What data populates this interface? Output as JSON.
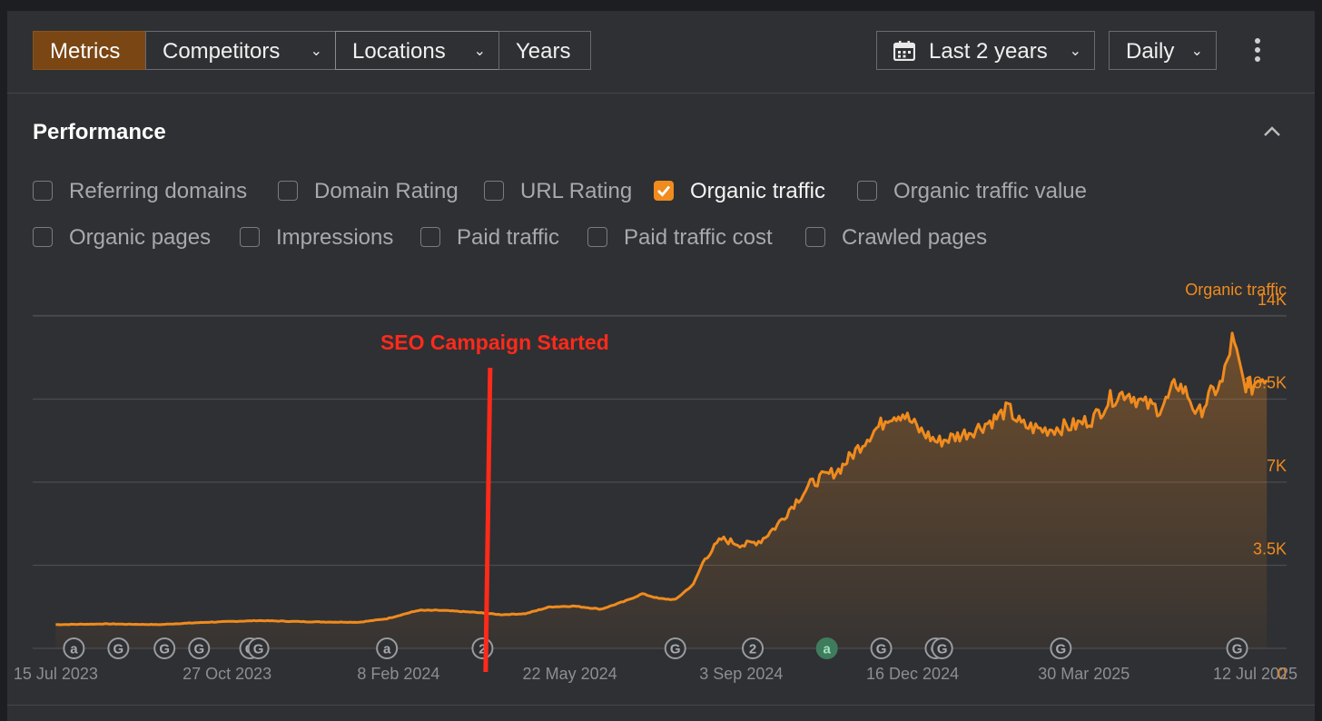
{
  "toolbar": {
    "tabs": [
      {
        "label": "Metrics"
      },
      {
        "label": "Competitors"
      },
      {
        "label": "Locations"
      },
      {
        "label": "Years"
      }
    ],
    "range": "Last 2 years",
    "granularity": "Daily"
  },
  "panel": {
    "title": "Performance",
    "metrics_row1": [
      {
        "label": "Referring domains",
        "checked": false
      },
      {
        "label": "Domain Rating",
        "checked": false
      },
      {
        "label": "URL Rating",
        "checked": false
      },
      {
        "label": "Organic traffic",
        "checked": true
      },
      {
        "label": "Organic traffic value",
        "checked": false
      }
    ],
    "metrics_row2": [
      {
        "label": "Organic pages",
        "checked": false
      },
      {
        "label": "Impressions",
        "checked": false
      },
      {
        "label": "Paid traffic",
        "checked": false
      },
      {
        "label": "Paid traffic cost",
        "checked": false
      },
      {
        "label": "Crawled pages",
        "checked": false
      }
    ]
  },
  "colors": {
    "accent": "#f08b1e",
    "annotation": "#ff2a1a",
    "active_tab": "#7a4614"
  },
  "chart_data": {
    "type": "area",
    "series": [
      {
        "name": "Organic traffic",
        "color": "#f08b1e"
      }
    ],
    "ylabel": "Organic traffic",
    "ylim": [
      0,
      14000
    ],
    "y_ticks": [
      0,
      3500,
      7000,
      10500,
      14000
    ],
    "y_tick_labels": [
      "0",
      "3.5K",
      "7K",
      "10.5K",
      "14K"
    ],
    "x_tick_labels": [
      "15 Jul 2023",
      "27 Oct 2023",
      "8 Feb 2024",
      "22 May 2024",
      "3 Sep 2024",
      "16 Dec 2024",
      "30 Mar 2025",
      "12 Jul 2025"
    ],
    "x_tick_dates": [
      "2023-07-15",
      "2023-10-27",
      "2024-02-08",
      "2024-05-22",
      "2024-09-03",
      "2024-12-16",
      "2025-03-30",
      "2025-07-12"
    ],
    "x_range": [
      "2023-07-01",
      "2025-07-31"
    ],
    "points": [
      [
        "2023-07-15",
        1000
      ],
      [
        "2023-08-15",
        1030
      ],
      [
        "2023-09-15",
        1000
      ],
      [
        "2023-10-15",
        1100
      ],
      [
        "2023-11-15",
        1170
      ],
      [
        "2023-12-15",
        1120
      ],
      [
        "2024-01-15",
        1100
      ],
      [
        "2024-02-01",
        1250
      ],
      [
        "2024-02-20",
        1600
      ],
      [
        "2024-03-05",
        1600
      ],
      [
        "2024-03-25",
        1520
      ],
      [
        "2024-04-10",
        1420
      ],
      [
        "2024-04-25",
        1460
      ],
      [
        "2024-05-10",
        1750
      ],
      [
        "2024-05-25",
        1780
      ],
      [
        "2024-06-10",
        1650
      ],
      [
        "2024-06-25",
        2000
      ],
      [
        "2024-07-05",
        2300
      ],
      [
        "2024-07-15",
        2100
      ],
      [
        "2024-07-25",
        2050
      ],
      [
        "2024-08-05",
        2700
      ],
      [
        "2024-08-12",
        3800
      ],
      [
        "2024-08-22",
        4600
      ],
      [
        "2024-09-05",
        4350
      ],
      [
        "2024-09-15",
        4550
      ],
      [
        "2024-09-25",
        5200
      ],
      [
        "2024-10-05",
        6100
      ],
      [
        "2024-10-15",
        6900
      ],
      [
        "2024-10-22",
        7200
      ],
      [
        "2024-11-01",
        7500
      ],
      [
        "2024-11-10",
        8200
      ],
      [
        "2024-11-20",
        9000
      ],
      [
        "2024-11-28",
        9500
      ],
      [
        "2024-12-01",
        9800
      ],
      [
        "2024-12-10",
        9900
      ],
      [
        "2024-12-20",
        9200
      ],
      [
        "2024-12-31",
        8700
      ],
      [
        "2025-01-15",
        9000
      ],
      [
        "2025-01-25",
        9300
      ],
      [
        "2025-02-05",
        9700
      ],
      [
        "2025-02-12",
        10100
      ],
      [
        "2025-02-20",
        9400
      ],
      [
        "2025-03-05",
        9200
      ],
      [
        "2025-03-15",
        9300
      ],
      [
        "2025-03-25",
        9400
      ],
      [
        "2025-04-05",
        9700
      ],
      [
        "2025-04-15",
        10500
      ],
      [
        "2025-04-25",
        10800
      ],
      [
        "2025-05-05",
        10300
      ],
      [
        "2025-05-15",
        10100
      ],
      [
        "2025-05-20",
        10500
      ],
      [
        "2025-05-25",
        11200
      ],
      [
        "2025-06-01",
        10700
      ],
      [
        "2025-06-07",
        9800
      ],
      [
        "2025-06-15",
        10700
      ],
      [
        "2025-06-22",
        11200
      ],
      [
        "2025-06-28",
        13000
      ],
      [
        "2025-07-02",
        12000
      ],
      [
        "2025-07-05",
        11200
      ],
      [
        "2025-07-10",
        11000
      ],
      [
        "2025-07-15",
        11500
      ],
      [
        "2025-07-19",
        11300
      ]
    ],
    "markers": [
      {
        "date": "2023-07-26",
        "glyph": "a",
        "style": "outline"
      },
      {
        "date": "2023-08-22",
        "glyph": "G",
        "style": "outline"
      },
      {
        "date": "2023-09-19",
        "glyph": "G",
        "style": "outline"
      },
      {
        "date": "2023-10-10",
        "glyph": "G",
        "style": "outline"
      },
      {
        "date": "2023-11-10",
        "glyph": "G",
        "style": "outline"
      },
      {
        "date": "2023-11-15",
        "glyph": "G",
        "style": "outline"
      },
      {
        "date": "2024-02-01",
        "glyph": "a",
        "style": "outline"
      },
      {
        "date": "2024-03-30",
        "glyph": "2",
        "style": "outline"
      },
      {
        "date": "2024-07-25",
        "glyph": "G",
        "style": "outline"
      },
      {
        "date": "2024-09-10",
        "glyph": "2",
        "style": "outline"
      },
      {
        "date": "2024-10-25",
        "glyph": "a",
        "style": "filled"
      },
      {
        "date": "2024-11-27",
        "glyph": "G",
        "style": "outline"
      },
      {
        "date": "2024-12-30",
        "glyph": "G",
        "style": "outline"
      },
      {
        "date": "2025-01-03",
        "glyph": "G",
        "style": "outline"
      },
      {
        "date": "2025-03-16",
        "glyph": "G",
        "style": "outline"
      },
      {
        "date": "2025-07-01",
        "glyph": "G",
        "style": "outline"
      }
    ],
    "annotation": {
      "text": "SEO Campaign Started",
      "date": "2024-04-02"
    }
  }
}
